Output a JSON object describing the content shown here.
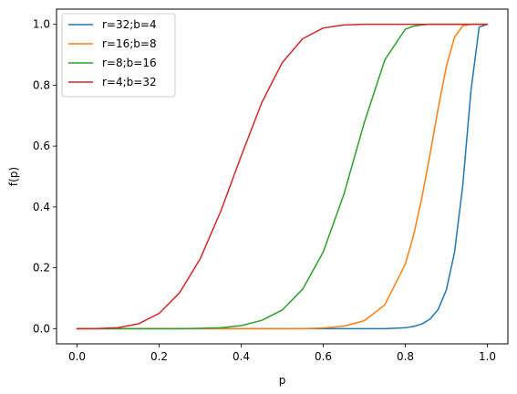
{
  "chart_data": {
    "type": "line",
    "title": "",
    "xlabel": "p",
    "ylabel": "f(p)",
    "xlim": [
      -0.05,
      1.05
    ],
    "ylim": [
      -0.05,
      1.05
    ],
    "xticks": [
      0.0,
      0.2,
      0.4,
      0.6,
      0.8,
      1.0
    ],
    "yticks": [
      0.0,
      0.2,
      0.4,
      0.6,
      0.8,
      1.0
    ],
    "xtick_labels": [
      "0.0",
      "0.2",
      "0.4",
      "0.6",
      "0.8",
      "1.0"
    ],
    "ytick_labels": [
      "0.0",
      "0.2",
      "0.4",
      "0.6",
      "0.8",
      "1.0"
    ],
    "grid": false,
    "legend_position": "top-left",
    "x": [
      0.0,
      0.05,
      0.1,
      0.15,
      0.2,
      0.25,
      0.3,
      0.35,
      0.4,
      0.45,
      0.5,
      0.55,
      0.6,
      0.65,
      0.7,
      0.75,
      0.8,
      0.82,
      0.84,
      0.86,
      0.88,
      0.9,
      0.92,
      0.94,
      0.96,
      0.98,
      1.0
    ],
    "series": [
      {
        "name": "r=32;b=4",
        "color": "#1f77b4",
        "values": [
          0.0,
          0.0,
          0.0,
          0.0,
          0.0,
          0.0,
          0.0,
          0.0,
          0.0,
          0.0,
          0.0,
          0.0,
          0.0,
          0.0,
          0.0,
          0.0,
          0.003,
          0.007,
          0.015,
          0.031,
          0.063,
          0.127,
          0.251,
          0.47,
          0.782,
          0.991,
          1.0
        ]
      },
      {
        "name": "r=16;b=8",
        "color": "#ff7f0e",
        "values": [
          0.0,
          0.0,
          0.0,
          0.0,
          0.0,
          0.0,
          0.0,
          0.0,
          0.0,
          0.0,
          0.0,
          0.0,
          0.002,
          0.008,
          0.026,
          0.078,
          0.212,
          0.306,
          0.428,
          0.571,
          0.723,
          0.861,
          0.958,
          0.995,
          1.0,
          1.0,
          1.0
        ]
      },
      {
        "name": "r=8;b=16",
        "color": "#2ca02c",
        "values": [
          0.0,
          0.0,
          0.0,
          0.0,
          0.0,
          0.0,
          0.001,
          0.003,
          0.01,
          0.027,
          0.061,
          0.13,
          0.252,
          0.44,
          0.677,
          0.883,
          0.984,
          0.994,
          0.998,
          1.0,
          1.0,
          1.0,
          1.0,
          1.0,
          1.0,
          1.0,
          1.0
        ]
      },
      {
        "name": "r=4;b=32",
        "color": "#d62728",
        "values": [
          0.0,
          0.0002,
          0.0032,
          0.016,
          0.05,
          0.118,
          0.229,
          0.385,
          0.567,
          0.742,
          0.874,
          0.953,
          0.988,
          0.998,
          1.0,
          1.0,
          1.0,
          1.0,
          1.0,
          1.0,
          1.0,
          1.0,
          1.0,
          1.0,
          1.0,
          1.0,
          1.0
        ]
      }
    ]
  }
}
